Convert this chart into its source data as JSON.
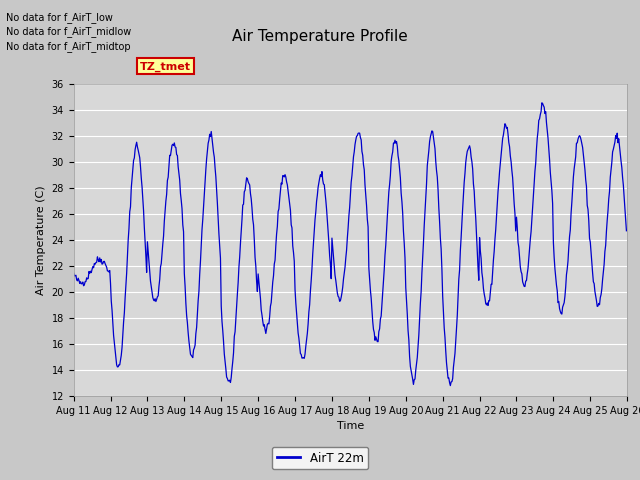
{
  "title": "Air Temperature Profile",
  "xlabel": "Time",
  "ylabel": "Air Temperature (C)",
  "legend_label": "AirT 22m",
  "line_color": "#0000cc",
  "fig_bg_color": "#c8c8c8",
  "plot_bg_color": "#d8d8d8",
  "ylim": [
    12,
    36
  ],
  "yticks": [
    12,
    14,
    16,
    18,
    20,
    22,
    24,
    26,
    28,
    30,
    32,
    34,
    36
  ],
  "no_data_texts": [
    "No data for f_AirT_low",
    "No data for f_AirT_midlow",
    "No data for f_AirT_midtop"
  ],
  "legend_box_color": "#ffff99",
  "legend_text_color": "#cc0000",
  "legend_box_edge": "#cc0000",
  "num_days": 15,
  "diurnal_highs": [
    22.5,
    31.3,
    31.5,
    32.0,
    28.7,
    29.0,
    29.0,
    32.2,
    31.5,
    32.3,
    31.2,
    32.7,
    34.4,
    32.0,
    32.0,
    32.0
  ],
  "diurnal_lows": [
    20.7,
    14.2,
    19.2,
    15.0,
    13.0,
    17.0,
    14.8,
    19.5,
    16.2,
    13.2,
    12.8,
    19.0,
    20.5,
    18.5,
    19.0,
    18.3
  ],
  "points_per_day": 48,
  "title_fontsize": 11,
  "axis_label_fontsize": 8,
  "tick_fontsize": 7
}
